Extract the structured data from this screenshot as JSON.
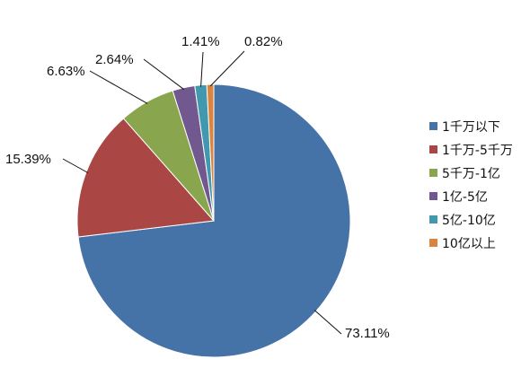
{
  "chart_data": {
    "type": "pie",
    "title": "",
    "categories": [
      "1千万以下",
      "1千万-5千万",
      "5千万-1亿",
      "1亿-5亿",
      "5亿-10亿",
      "10亿以上"
    ],
    "values": [
      73.11,
      15.39,
      6.63,
      2.64,
      1.41,
      0.82
    ],
    "data_labels": [
      "73.11%",
      "15.39%",
      "6.63%",
      "2.64%",
      "1.41%",
      "0.82%"
    ],
    "colors": [
      "#4572A7",
      "#AA4643",
      "#89A54E",
      "#71588F",
      "#4198AF",
      "#DB843D"
    ],
    "legend_position": "right",
    "start_angle": "12 o'clock, clockwise"
  }
}
